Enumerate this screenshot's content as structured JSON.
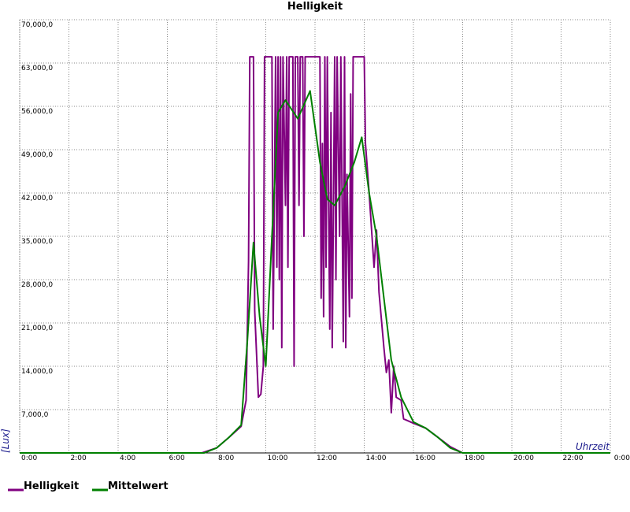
{
  "chart_data": {
    "type": "line",
    "title": "Helligkeit",
    "xlabel": "Uhrzeit",
    "ylabel": "[Lux]",
    "xlim": [
      0,
      24
    ],
    "ylim": [
      0,
      70000
    ],
    "grid": true,
    "xticks": [
      {
        "value": 0,
        "label": "0:00"
      },
      {
        "value": 2,
        "label": "2:00"
      },
      {
        "value": 4,
        "label": "4:00"
      },
      {
        "value": 6,
        "label": "6:00"
      },
      {
        "value": 8,
        "label": "8:00"
      },
      {
        "value": 10,
        "label": "10:00"
      },
      {
        "value": 12,
        "label": "12:00"
      },
      {
        "value": 14,
        "label": "14:00"
      },
      {
        "value": 16,
        "label": "16:00"
      },
      {
        "value": 18,
        "label": "18:00"
      },
      {
        "value": 20,
        "label": "20:00"
      },
      {
        "value": 22,
        "label": "22:00"
      },
      {
        "value": 24,
        "label": "0:00"
      }
    ],
    "yticks": [
      {
        "value": 7000,
        "label": "7,000,0"
      },
      {
        "value": 14000,
        "label": "14,000,0"
      },
      {
        "value": 21000,
        "label": "21,000,0"
      },
      {
        "value": 28000,
        "label": "28,000,0"
      },
      {
        "value": 35000,
        "label": "35,000,0"
      },
      {
        "value": 42000,
        "label": "42,000,0"
      },
      {
        "value": 49000,
        "label": "49,000,0"
      },
      {
        "value": 56000,
        "label": "56,000,0"
      },
      {
        "value": 63000,
        "label": "63,000,0"
      },
      {
        "value": 70000,
        "label": "70,000,0"
      }
    ],
    "series": [
      {
        "name": "Helligkeit",
        "color": "#800080",
        "x": [
          0,
          7.4,
          8,
          8.5,
          9,
          9.2,
          9.3,
          9.35,
          9.5,
          9.55,
          9.7,
          9.8,
          9.9,
          9.95,
          10.25,
          10.3,
          10.4,
          10.45,
          10.5,
          10.55,
          10.6,
          10.65,
          10.7,
          10.8,
          10.85,
          10.9,
          10.95,
          11.1,
          11.15,
          11.2,
          11.3,
          11.35,
          11.4,
          11.5,
          11.55,
          11.6,
          12.2,
          12.25,
          12.3,
          12.35,
          12.4,
          12.45,
          12.5,
          12.6,
          12.65,
          12.7,
          12.8,
          12.85,
          12.9,
          13.0,
          13.05,
          13.15,
          13.2,
          13.25,
          13.3,
          13.4,
          13.45,
          13.5,
          13.55,
          14.0,
          14.05,
          14.2,
          14.4,
          14.5,
          14.6,
          14.8,
          14.9,
          15.0,
          15.1,
          15.2,
          15.3,
          15.5,
          15.6,
          16,
          16.5,
          17,
          17.5,
          18,
          24
        ],
        "values": [
          0,
          0,
          800,
          2500,
          4300,
          8500,
          31000,
          64000,
          64000,
          23000,
          9000,
          9500,
          14000,
          64000,
          64000,
          20000,
          64000,
          30000,
          64000,
          28000,
          64000,
          17000,
          64000,
          40000,
          64000,
          30000,
          64000,
          64000,
          14000,
          64000,
          64000,
          40000,
          64000,
          64000,
          35000,
          64000,
          64000,
          25000,
          50000,
          22000,
          64000,
          30000,
          64000,
          20000,
          55000,
          17000,
          64000,
          28000,
          64000,
          35000,
          64000,
          18000,
          64000,
          17000,
          45000,
          22000,
          58000,
          25000,
          64000,
          64000,
          50000,
          42000,
          30000,
          36000,
          26000,
          17000,
          13000,
          15000,
          6500,
          14000,
          9000,
          8500,
          5500,
          4800,
          4000,
          2500,
          1000,
          0,
          0
        ]
      },
      {
        "name": "Mittelwert",
        "color": "#008000",
        "x": [
          0,
          7.5,
          8,
          8.5,
          9,
          9.25,
          9.5,
          9.75,
          10,
          10.25,
          10.5,
          10.8,
          11.3,
          11.8,
          12.2,
          12.5,
          12.8,
          13.2,
          13.6,
          13.9,
          14.2,
          14.5,
          14.8,
          15.1,
          15.5,
          16,
          16.5,
          17,
          17.5,
          18,
          24
        ],
        "values": [
          0,
          0,
          800,
          2500,
          4500,
          18000,
          34000,
          22000,
          14000,
          35000,
          55000,
          57000,
          54000,
          58500,
          47000,
          41000,
          40000,
          43000,
          47000,
          51000,
          42000,
          35000,
          25000,
          15000,
          9000,
          5000,
          4000,
          2500,
          800,
          0,
          0
        ]
      }
    ]
  }
}
